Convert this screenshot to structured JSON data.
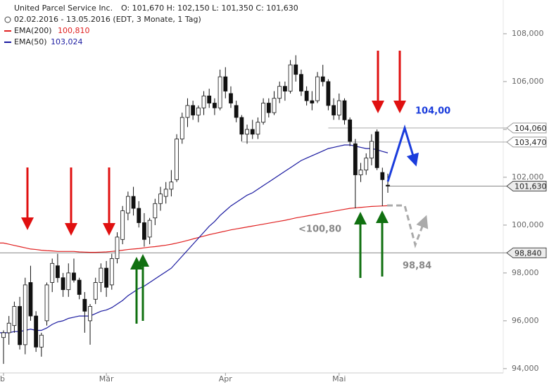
{
  "chart_data": {
    "type": "candlestick",
    "title": "United Parcel Service Inc.",
    "quote": "O: 101,670  H: 102,150  L: 101,350  C: 101,630",
    "subtitle": "02.02.2016 - 13.05.2016 (EDT, 3 Monate, 1 Tag)",
    "open": [
      95.3,
      95.5,
      95.8,
      96.6,
      95.0,
      97.6,
      96.2,
      94.9,
      96.0,
      97.6,
      98.3,
      97.8,
      97.3,
      98.0,
      97.7,
      96.9,
      96.0,
      96.9,
      97.6,
      98.2,
      97.5,
      98.6,
      99.4,
      100.5,
      101.2,
      100.7,
      100.1,
      99.5,
      100.3,
      100.9,
      101.2,
      101.5,
      101.9,
      103.6,
      104.5,
      105.0,
      104.6,
      104.9,
      105.4,
      105.1,
      104.9,
      106.2,
      105.5,
      105.0,
      104.5,
      103.8,
      104.0,
      103.8,
      104.3,
      105.1,
      104.7,
      105.3,
      105.8,
      105.6,
      106.7,
      106.3,
      105.6,
      105.2,
      105.2,
      106.2,
      106.0,
      105.0,
      104.6,
      105.2,
      104.4,
      103.4,
      102.1,
      102.3,
      102.8,
      103.9,
      102.2,
      101.67
    ],
    "high": [
      95.6,
      96.2,
      96.8,
      97.0,
      97.8,
      98.3,
      96.4,
      95.5,
      97.6,
      98.6,
      98.8,
      98.0,
      98.4,
      98.6,
      97.8,
      97.2,
      96.7,
      97.8,
      98.4,
      98.5,
      98.8,
      99.7,
      100.8,
      101.4,
      101.6,
      101.0,
      100.5,
      100.3,
      101.1,
      101.6,
      101.8,
      102.3,
      103.8,
      104.7,
      105.3,
      105.2,
      105.0,
      105.6,
      105.7,
      105.3,
      106.5,
      106.6,
      105.8,
      105.2,
      104.6,
      104.2,
      104.4,
      104.5,
      105.3,
      105.3,
      105.6,
      106.0,
      106.0,
      106.9,
      107.1,
      106.5,
      105.8,
      105.6,
      106.4,
      106.7,
      106.1,
      105.3,
      105.5,
      105.3,
      104.5,
      103.6,
      102.6,
      103.0,
      103.8,
      104.0,
      102.4,
      102.15
    ],
    "low": [
      94.2,
      95.0,
      95.5,
      94.8,
      94.6,
      96.0,
      94.7,
      94.5,
      95.8,
      97.2,
      97.6,
      97.0,
      97.0,
      97.6,
      96.9,
      95.5,
      95.0,
      96.7,
      97.2,
      97.0,
      97.3,
      98.4,
      99.2,
      100.2,
      100.4,
      99.9,
      99.1,
      99.2,
      100.0,
      100.6,
      100.9,
      101.2,
      101.8,
      103.4,
      104.1,
      104.4,
      104.3,
      104.6,
      104.9,
      104.6,
      104.8,
      105.3,
      104.9,
      104.3,
      103.5,
      103.4,
      103.6,
      103.6,
      104.2,
      104.5,
      104.6,
      105.1,
      105.2,
      105.5,
      106.0,
      105.4,
      105.0,
      104.8,
      105.1,
      105.8,
      104.8,
      104.4,
      104.4,
      104.2,
      103.3,
      100.7,
      101.8,
      102.1,
      102.5,
      102.3,
      100.8,
      101.35
    ],
    "close": [
      95.5,
      95.9,
      96.6,
      95.0,
      97.5,
      96.2,
      94.9,
      95.4,
      97.5,
      98.4,
      97.8,
      97.3,
      98.0,
      97.7,
      97.1,
      96.4,
      96.6,
      97.6,
      98.2,
      97.4,
      98.6,
      99.5,
      100.6,
      101.2,
      100.7,
      100.1,
      99.4,
      100.2,
      100.9,
      101.3,
      101.5,
      101.8,
      103.6,
      104.5,
      105.0,
      104.6,
      104.9,
      105.4,
      105.1,
      104.9,
      106.2,
      105.6,
      105.1,
      104.5,
      103.8,
      104.0,
      103.8,
      104.3,
      105.1,
      104.7,
      105.3,
      105.8,
      105.6,
      106.7,
      106.3,
      105.6,
      105.2,
      105.1,
      106.2,
      106.0,
      105.0,
      104.6,
      105.2,
      104.4,
      103.5,
      102.1,
      102.3,
      102.8,
      103.5,
      102.4,
      101.9,
      101.63
    ],
    "series": [
      {
        "name": "EMA(200)",
        "last_label": "100,810",
        "color": "#e02020",
        "values": [
          99.25,
          99.2,
          99.15,
          99.1,
          99.05,
          99.0,
          98.98,
          98.95,
          98.93,
          98.92,
          98.9,
          98.9,
          98.9,
          98.9,
          98.88,
          98.87,
          98.86,
          98.86,
          98.87,
          98.88,
          98.9,
          98.92,
          98.95,
          98.98,
          99.0,
          99.02,
          99.05,
          99.08,
          99.1,
          99.13,
          99.16,
          99.2,
          99.25,
          99.3,
          99.36,
          99.42,
          99.48,
          99.54,
          99.6,
          99.65,
          99.7,
          99.75,
          99.8,
          99.84,
          99.88,
          99.92,
          99.96,
          100.0,
          100.04,
          100.08,
          100.12,
          100.16,
          100.2,
          100.25,
          100.3,
          100.34,
          100.38,
          100.42,
          100.46,
          100.5,
          100.54,
          100.58,
          100.62,
          100.66,
          100.7,
          100.72,
          100.74,
          100.76,
          100.78,
          100.79,
          100.8,
          100.81
        ]
      },
      {
        "name": "EMA(50)",
        "last_label": "103,024",
        "color": "#1a1aa0",
        "values": [
          95.5,
          95.5,
          95.55,
          95.55,
          95.6,
          95.65,
          95.6,
          95.6,
          95.7,
          95.85,
          95.95,
          96.0,
          96.1,
          96.15,
          96.2,
          96.2,
          96.2,
          96.3,
          96.4,
          96.45,
          96.55,
          96.7,
          96.85,
          97.05,
          97.2,
          97.35,
          97.45,
          97.6,
          97.75,
          97.9,
          98.05,
          98.2,
          98.45,
          98.7,
          98.95,
          99.2,
          99.45,
          99.7,
          99.95,
          100.15,
          100.4,
          100.6,
          100.8,
          100.95,
          101.1,
          101.25,
          101.35,
          101.5,
          101.65,
          101.8,
          101.95,
          102.1,
          102.25,
          102.4,
          102.55,
          102.7,
          102.8,
          102.9,
          103.0,
          103.1,
          103.2,
          103.25,
          103.3,
          103.35,
          103.35,
          103.3,
          103.25,
          103.2,
          103.2,
          103.15,
          103.08,
          103.02
        ]
      }
    ],
    "ylim": [
      93.82,
      109.41
    ],
    "yticks": [
      {
        "value": 94,
        "label": "94,000"
      },
      {
        "value": 96,
        "label": "96,000"
      },
      {
        "value": 98,
        "label": "98,000"
      },
      {
        "value": 100,
        "label": "100,000"
      },
      {
        "value": 102,
        "label": "102,000"
      },
      {
        "value": 104,
        "label": "104,000"
      },
      {
        "value": 106,
        "label": "106,000"
      },
      {
        "value": 108,
        "label": "108,000"
      }
    ],
    "xticks": [
      {
        "value": 0,
        "label": "b"
      },
      {
        "value": 19,
        "label": "Mär"
      },
      {
        "value": 41,
        "label": "Apr"
      },
      {
        "value": 62,
        "label": "Mai"
      }
    ],
    "levels": [
      {
        "value": 104.06,
        "label": "104,060",
        "from": 60
      },
      {
        "value": 103.47,
        "label": "103,470",
        "from": 44
      },
      {
        "value": 101.63,
        "label": "101,630",
        "from": 71
      },
      {
        "value": 98.84,
        "label": "98,840",
        "from": 0
      }
    ],
    "annotations": [
      "104,00",
      "<100,80",
      "98,84"
    ]
  }
}
